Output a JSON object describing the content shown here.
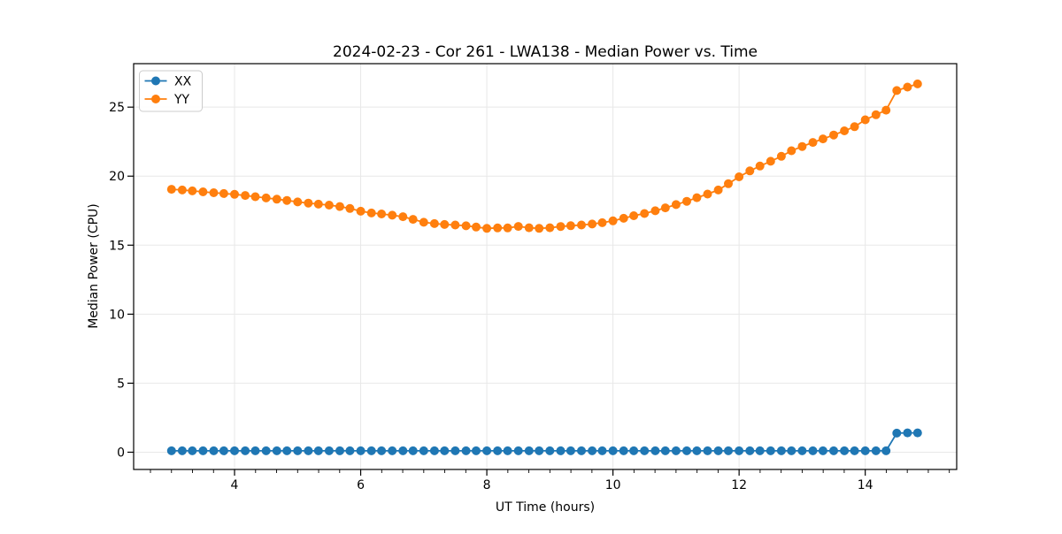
{
  "figure": {
    "background": "#ffffff"
  },
  "chart_data": {
    "type": "line",
    "title": "2024-02-23 - Cor 261 - LWA138 - Median Power vs. Time",
    "xlabel": "UT Time (hours)",
    "ylabel": "Median Power (CPU)",
    "xlim": [
      2.4,
      15.45
    ],
    "ylim": [
      -1.25,
      28.15
    ],
    "x_major_ticks": [
      4,
      6,
      8,
      10,
      12,
      14
    ],
    "x_minor_tick_step": 0.3333333,
    "y_major_ticks": [
      0,
      5,
      10,
      15,
      20,
      25
    ],
    "grid": true,
    "grid_color": "#e8e8e8",
    "legend": {
      "position": "upper-left",
      "entries": [
        "XX",
        "YY"
      ]
    },
    "x": [
      3.0,
      3.17,
      3.33,
      3.5,
      3.67,
      3.83,
      4.0,
      4.17,
      4.33,
      4.5,
      4.67,
      4.83,
      5.0,
      5.17,
      5.33,
      5.5,
      5.67,
      5.83,
      6.0,
      6.17,
      6.33,
      6.5,
      6.67,
      6.83,
      7.0,
      7.17,
      7.33,
      7.5,
      7.67,
      7.83,
      8.0,
      8.17,
      8.33,
      8.5,
      8.67,
      8.83,
      9.0,
      9.17,
      9.33,
      9.5,
      9.67,
      9.83,
      10.0,
      10.17,
      10.33,
      10.5,
      10.67,
      10.83,
      11.0,
      11.17,
      11.33,
      11.5,
      11.67,
      11.83,
      12.0,
      12.17,
      12.33,
      12.5,
      12.67,
      12.83,
      13.0,
      13.17,
      13.33,
      13.5,
      13.67,
      13.83,
      14.0,
      14.17,
      14.33,
      14.5,
      14.67,
      14.83
    ],
    "series": [
      {
        "name": "XX",
        "color": "#1f77b4",
        "values": [
          0.1,
          0.1,
          0.1,
          0.1,
          0.1,
          0.1,
          0.1,
          0.1,
          0.1,
          0.1,
          0.1,
          0.1,
          0.1,
          0.1,
          0.1,
          0.1,
          0.1,
          0.1,
          0.1,
          0.1,
          0.1,
          0.1,
          0.1,
          0.1,
          0.1,
          0.1,
          0.1,
          0.1,
          0.1,
          0.1,
          0.1,
          0.1,
          0.1,
          0.1,
          0.1,
          0.1,
          0.1,
          0.1,
          0.1,
          0.1,
          0.1,
          0.1,
          0.1,
          0.1,
          0.1,
          0.1,
          0.1,
          0.1,
          0.1,
          0.1,
          0.1,
          0.1,
          0.1,
          0.1,
          0.1,
          0.1,
          0.1,
          0.1,
          0.1,
          0.1,
          0.1,
          0.1,
          0.1,
          0.1,
          0.1,
          0.1,
          0.1,
          0.1,
          0.1,
          1.38,
          1.4,
          1.4
        ]
      },
      {
        "name": "YY",
        "color": "#ff7f0e",
        "values": [
          19.05,
          19.0,
          18.93,
          18.86,
          18.8,
          18.74,
          18.68,
          18.6,
          18.51,
          18.42,
          18.33,
          18.24,
          18.13,
          18.05,
          17.97,
          17.9,
          17.8,
          17.66,
          17.46,
          17.33,
          17.26,
          17.17,
          17.06,
          16.87,
          16.66,
          16.56,
          16.5,
          16.46,
          16.4,
          16.31,
          16.22,
          16.25,
          16.25,
          16.36,
          16.26,
          16.22,
          16.26,
          16.35,
          16.41,
          16.46,
          16.53,
          16.63,
          16.76,
          16.95,
          17.13,
          17.29,
          17.49,
          17.7,
          17.94,
          18.18,
          18.44,
          18.7,
          19.0,
          19.45,
          19.95,
          20.38,
          20.73,
          21.08,
          21.44,
          21.84,
          22.15,
          22.44,
          22.7,
          22.98,
          23.28,
          23.58,
          24.08,
          24.45,
          24.78,
          26.2,
          26.45,
          26.68
        ]
      }
    ]
  }
}
